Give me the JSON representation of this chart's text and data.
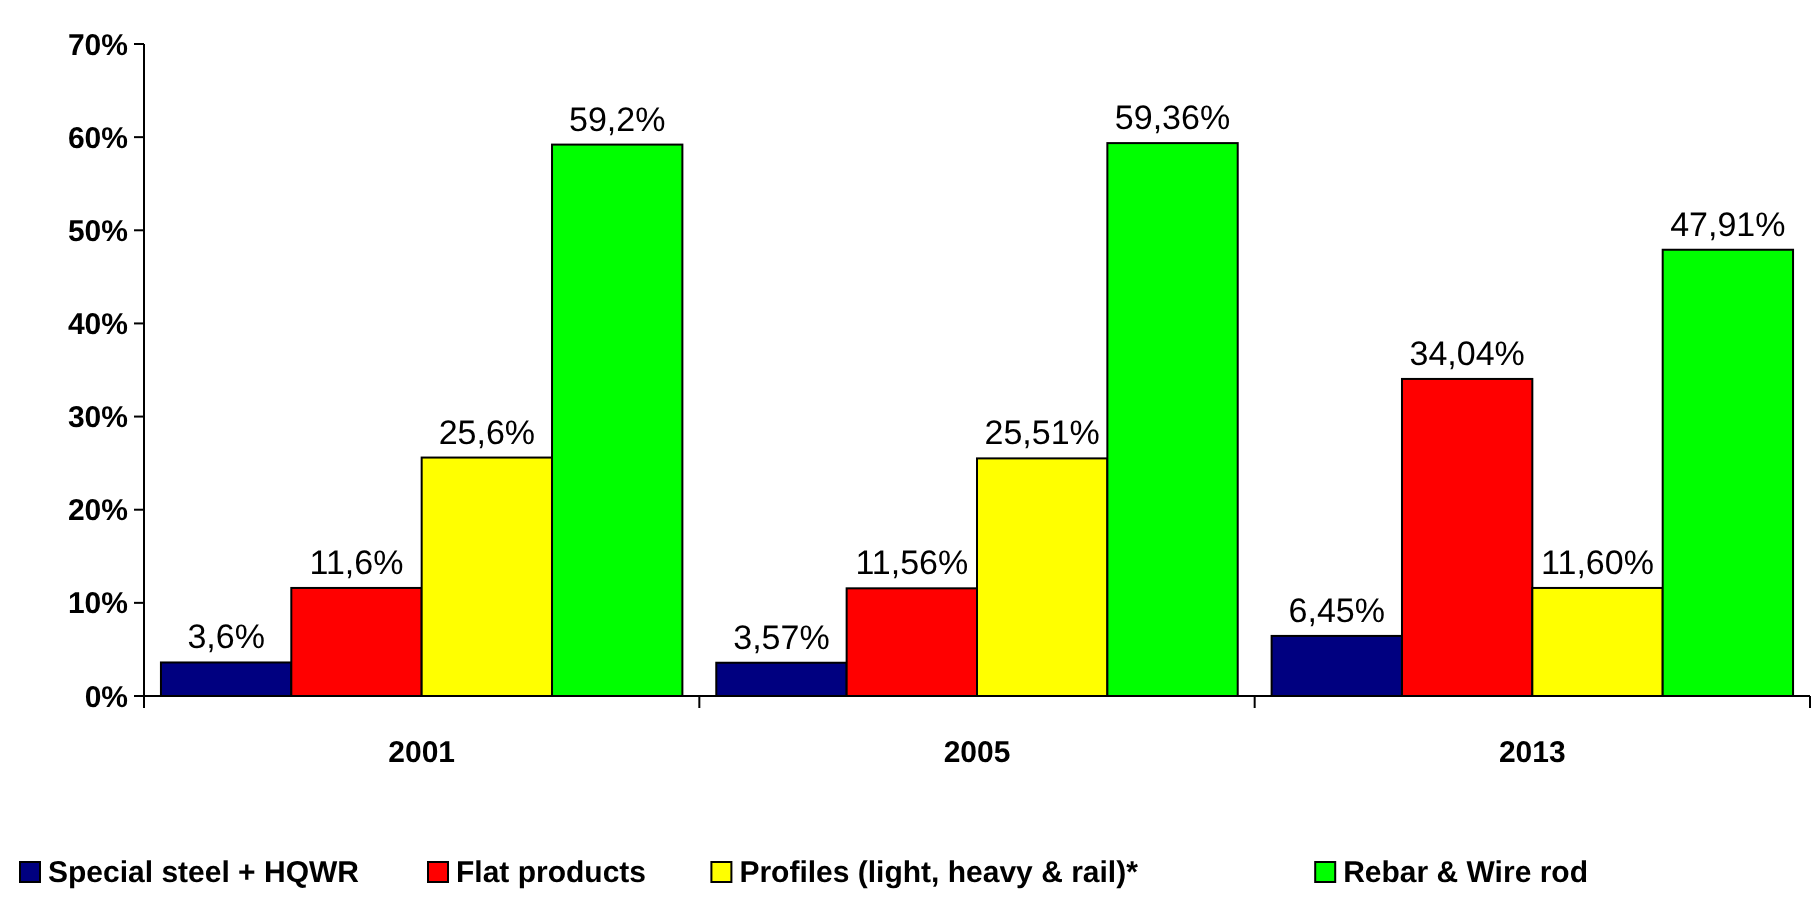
{
  "chart_data": {
    "type": "bar",
    "categories": [
      "2001",
      "2005",
      "2013"
    ],
    "series": [
      {
        "name": "Special steel + HQWR",
        "color": "#000080",
        "values": [
          3.6,
          3.57,
          6.45
        ],
        "value_labels": [
          "3,6%",
          "3,57%",
          "6,45%"
        ]
      },
      {
        "name": "Flat products",
        "color": "#ff0000",
        "values": [
          11.6,
          11.56,
          34.04
        ],
        "value_labels": [
          "11,6%",
          "11,56%",
          "34,04%"
        ]
      },
      {
        "name": "Profiles (light, heavy & rail)*",
        "color": "#ffff00",
        "values": [
          25.6,
          25.51,
          11.6
        ],
        "value_labels": [
          "25,6%",
          "25,51%",
          "11,60%"
        ]
      },
      {
        "name": "Rebar & Wire rod",
        "color": "#00ff00",
        "values": [
          59.2,
          59.36,
          47.91
        ],
        "value_labels": [
          "59,2%",
          "59,36%",
          "47,91%"
        ]
      }
    ],
    "ylim": [
      0,
      70
    ],
    "yticks": [
      {
        "value": 0,
        "label": "0%"
      },
      {
        "value": 10,
        "label": "10%"
      },
      {
        "value": 20,
        "label": "20%"
      },
      {
        "value": 30,
        "label": "30%"
      },
      {
        "value": 40,
        "label": "40%"
      },
      {
        "value": 50,
        "label": "50%"
      },
      {
        "value": 60,
        "label": "60%"
      },
      {
        "value": 70,
        "label": "70%"
      }
    ],
    "legend": "bottom",
    "grid": false
  }
}
